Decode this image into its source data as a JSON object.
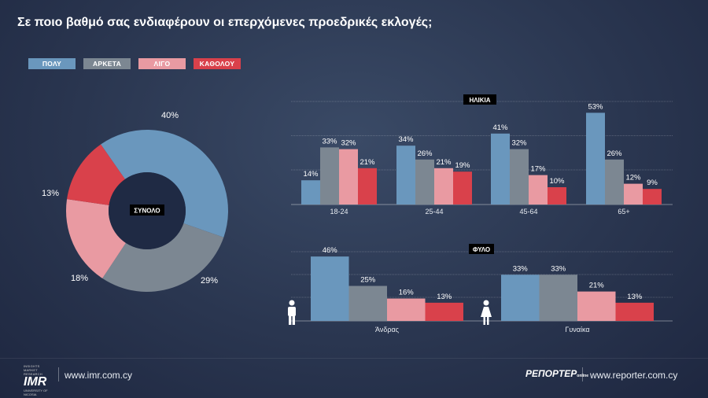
{
  "title": "Σε ποιο βαθμό σας ενδιαφέρουν οι επερχόμενες προεδρικές εκλογές;",
  "legend": [
    {
      "label": "ΠΟΛΥ",
      "color": "#6a97bd"
    },
    {
      "label": "ΑΡΚΕΤΑ",
      "color": "#7c8792"
    },
    {
      "label": "ΛΙΓΟ",
      "color": "#e99aa2"
    },
    {
      "label": "ΚΑΘΟΛΟΥ",
      "color": "#d9414b"
    }
  ],
  "footer": {
    "imr_logo_top": "INSIGHTS MARKET RESEARCH",
    "imr_logo_text": "IMR",
    "imr_logo_bottom": "UNIVERSITY OF NICOSIA",
    "imr_url": "www.imr.com.cy",
    "reporter_logo": "ΡΕΠΟΡΤΕΡ",
    "reporter_logo_sub": "online",
    "reporter_url": "www.reporter.com.cy"
  },
  "icons": [
    "male-person-icon",
    "female-person-icon"
  ],
  "chart_data": [
    {
      "type": "pie",
      "variant": "donut",
      "center_label": "ΣΥΝΟΛΟ",
      "categories": [
        "ΠΟΛΥ",
        "ΑΡΚΕΤΑ",
        "ΛΙΓΟ",
        "ΚΑΘΟΛΟΥ"
      ],
      "values": [
        40,
        29,
        18,
        13
      ],
      "labels": [
        "40%",
        "29%",
        "18%",
        "13%"
      ]
    },
    {
      "type": "bar",
      "title": "ΗΛΙΚΙΑ",
      "categories": [
        "18-24",
        "25-44",
        "45-64",
        "65+"
      ],
      "series": [
        {
          "name": "ΠΟΛΥ",
          "values": [
            14,
            34,
            41,
            53
          ]
        },
        {
          "name": "ΑΡΚΕΤΑ",
          "values": [
            33,
            26,
            32,
            26
          ]
        },
        {
          "name": "ΛΙΓΟ",
          "values": [
            32,
            21,
            17,
            12
          ]
        },
        {
          "name": "ΚΑΘΟΛΟΥ",
          "values": [
            21,
            19,
            10,
            9
          ]
        }
      ],
      "ylim": [
        0,
        60
      ],
      "grid": true
    },
    {
      "type": "bar",
      "title": "ΦΥΛΟ",
      "categories": [
        "Άνδρας",
        "Γυναίκα"
      ],
      "series": [
        {
          "name": "ΠΟΛΥ",
          "values": [
            46,
            33
          ]
        },
        {
          "name": "ΑΡΚΕΤΑ",
          "values": [
            25,
            33
          ]
        },
        {
          "name": "ΛΙΓΟ",
          "values": [
            16,
            21
          ]
        },
        {
          "name": "ΚΑΘΟΛΟΥ",
          "values": [
            13,
            13
          ]
        }
      ],
      "ylim": [
        0,
        50
      ],
      "grid": true
    }
  ]
}
